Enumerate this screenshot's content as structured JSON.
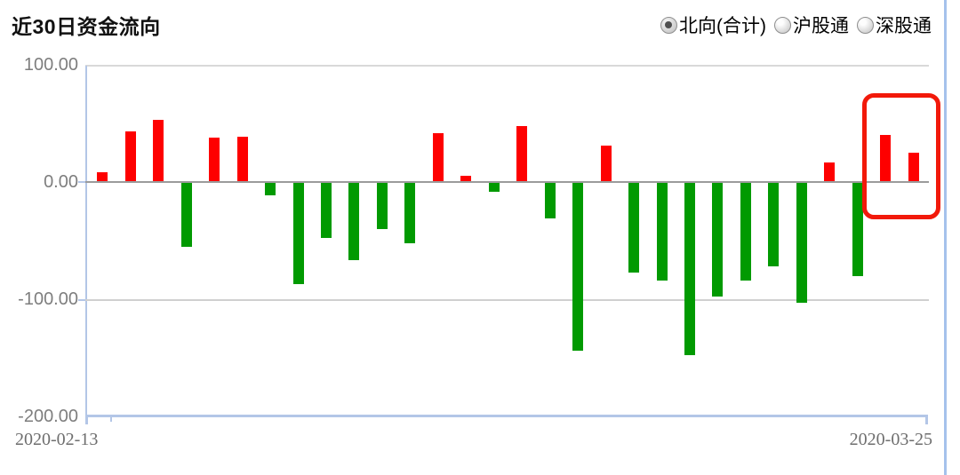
{
  "header": {
    "title": "近30日资金流向"
  },
  "controls": {
    "options": [
      {
        "label": "北向(合计)",
        "selected": true
      },
      {
        "label": "沪股通",
        "selected": false
      },
      {
        "label": "深股通",
        "selected": false
      }
    ]
  },
  "chart_data": {
    "type": "bar",
    "title": "近30日资金流向",
    "xlabel": "",
    "ylabel": "",
    "ylim": [
      -200,
      100
    ],
    "y_ticks": [
      100,
      0,
      -100,
      -200
    ],
    "y_tick_labels": [
      "100.00",
      "0.00",
      "-100.00",
      "-200.00"
    ],
    "x_tick_labels": [
      "2020-02-13",
      "2020-03-25"
    ],
    "grid": "horizontal",
    "legend_position": "none",
    "values": [
      8,
      43,
      53,
      -55,
      38,
      39,
      -11,
      -87,
      -48,
      -67,
      -40,
      -52,
      42,
      5,
      -8,
      48,
      -31,
      -144,
      31,
      -77,
      -84,
      -148,
      -98,
      -84,
      -72,
      -103,
      17,
      -80,
      40,
      25
    ],
    "positive_color": "#fe0000",
    "negative_color": "#019a01",
    "highlight": {
      "start_index": 28,
      "end_index": 29,
      "border_color": "#f2190a"
    }
  },
  "colors": {
    "axis_blue": "#b3c6e7",
    "divider_blue": "#a5c2ec",
    "zero_line": "#9b9b9b",
    "grid_light": "#d0d0d0",
    "label_gray": "#7e7e7e"
  }
}
